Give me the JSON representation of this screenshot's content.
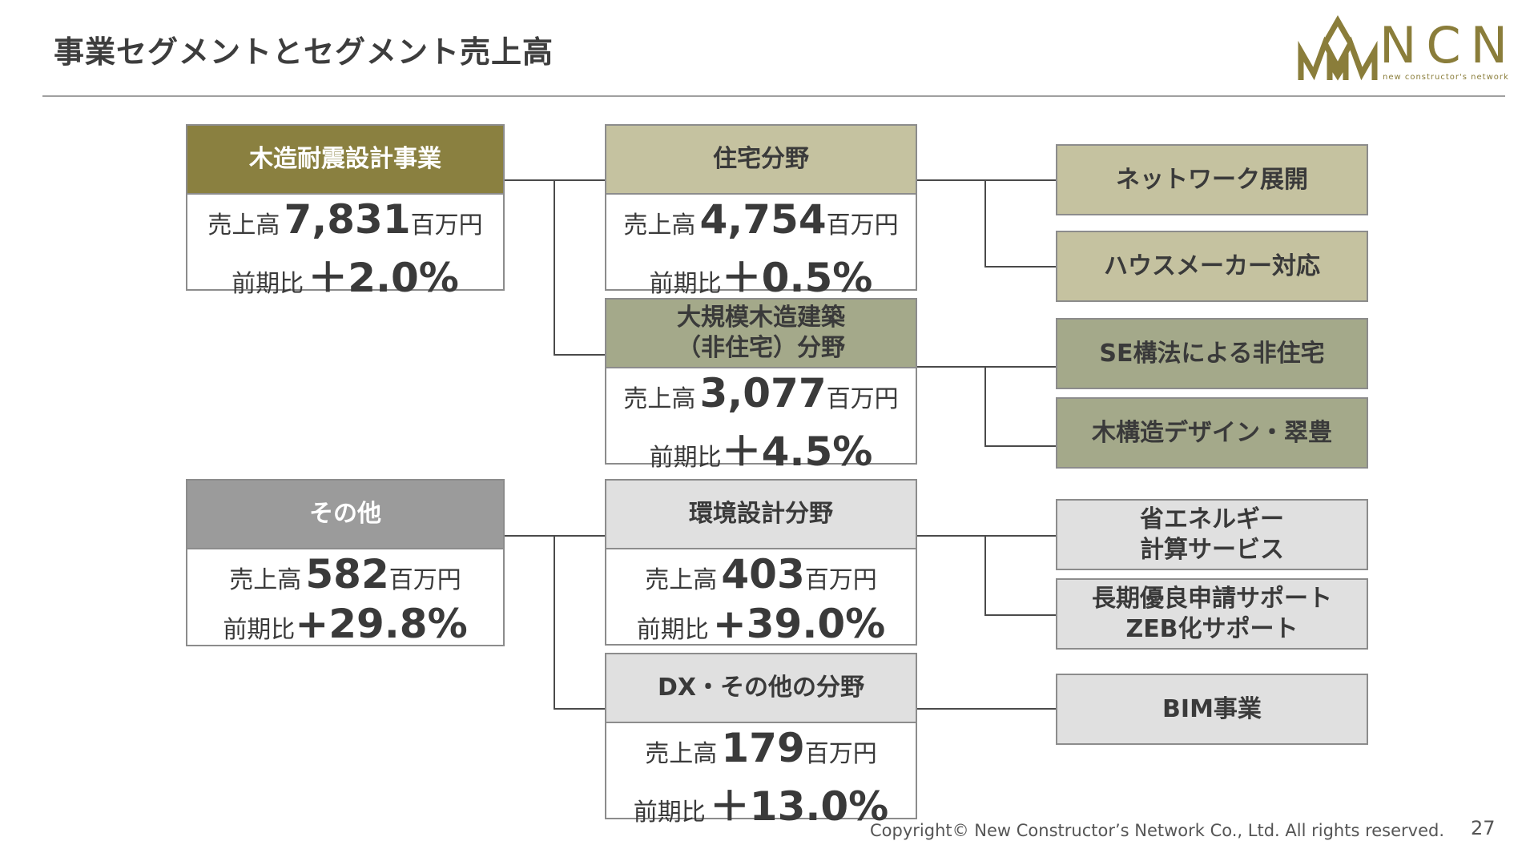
{
  "title": "事業セグメントとセグメント売上高",
  "logo": {
    "name": "NCN",
    "tagline": "new constructor's network",
    "color": "#8a7d3a"
  },
  "labels": {
    "sales": "売上高",
    "unit": "百万円",
    "yoy": "前期比"
  },
  "segments": [
    {
      "name": "木造耐震設計事業",
      "sales": "7,831",
      "yoy": "＋2.0%"
    },
    {
      "name": "その他",
      "sales": "582",
      "yoy": "+29.8%"
    }
  ],
  "fields": [
    {
      "name": "住宅分野",
      "sales": "4,754",
      "yoy": "＋0.5%"
    },
    {
      "name_line1": "大規模木造建築",
      "name_line2": "（非住宅）分野",
      "sales": "3,077",
      "yoy": "＋4.5%"
    },
    {
      "name": "環境設計分野",
      "sales": "403",
      "yoy": "+39.0%"
    },
    {
      "name": "DX・その他の分野",
      "sales": "179",
      "yoy": "＋13.0%"
    }
  ],
  "services": [
    {
      "line1": "ネットワーク展開"
    },
    {
      "line1": "ハウスメーカー対応"
    },
    {
      "line1": "SE構法による非住宅"
    },
    {
      "line1": "木構造デザイン・翠豊"
    },
    {
      "line1": "省エネルギー",
      "line2": "計算サービス"
    },
    {
      "line1": "長期優良申請サポート",
      "line2": "ZEB化サポート"
    },
    {
      "line1": "BIM事業"
    }
  ],
  "colors": {
    "olive": "#8a8040",
    "khaki": "#c5c2a0",
    "sage": "#a4a98a",
    "gray": "#9b9b9b",
    "light": "#e0e0e0",
    "border": "#8c8c8c"
  },
  "footer": "Copyright© New Constructor’s Network Co., Ltd. All rights reserved.",
  "page_number": "27"
}
